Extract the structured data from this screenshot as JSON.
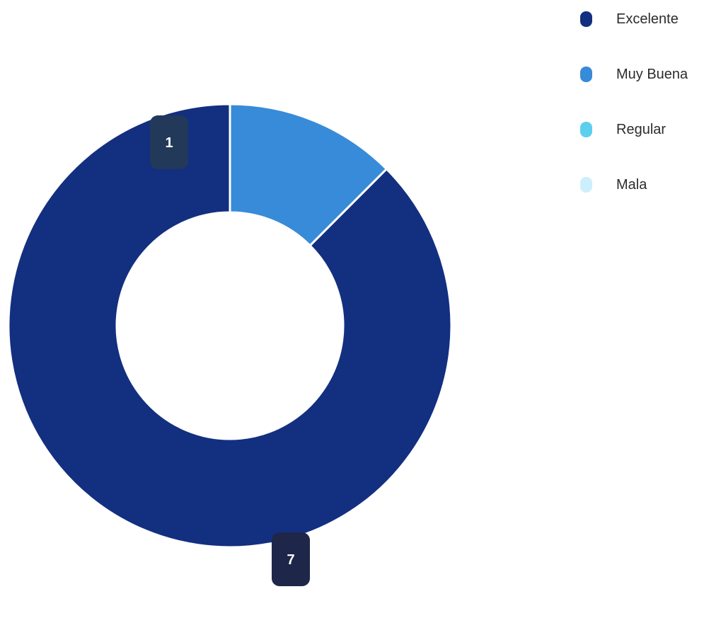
{
  "chart_data": {
    "type": "pie",
    "variant": "donut",
    "legend_position": "top-right",
    "categories": [
      "Excelente",
      "Muy Buena",
      "Regular",
      "Mala"
    ],
    "values": [
      7,
      1,
      0,
      0
    ],
    "colors": [
      "#132f80",
      "#388bd8",
      "#5ccfef",
      "#cdeffb"
    ],
    "data_labels": [
      "7",
      "1",
      "",
      ""
    ],
    "label_badge_colors": [
      "#1e2749",
      "#22395a"
    ]
  }
}
